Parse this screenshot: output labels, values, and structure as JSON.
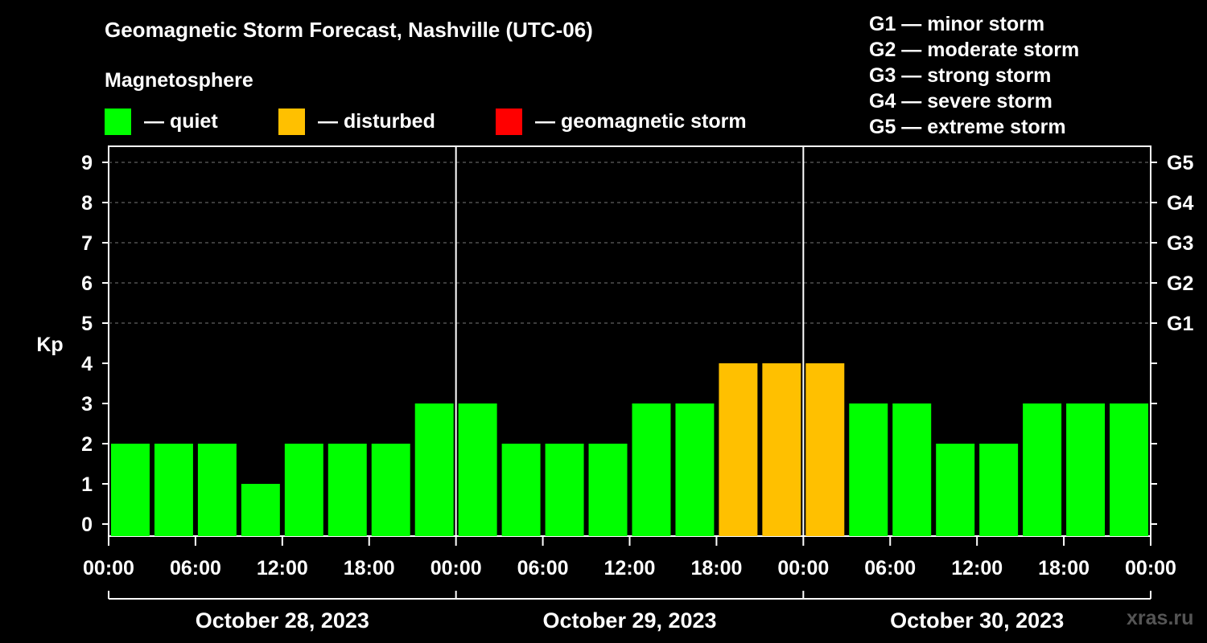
{
  "title": "Geomagnetic Storm Forecast, Nashville (UTC-06)",
  "legend": {
    "heading": "Magnetosphere",
    "items": [
      {
        "label": "— quiet",
        "color": "#00ff00"
      },
      {
        "label": "— disturbed",
        "color": "#ffc000"
      },
      {
        "label": "— geomagnetic storm",
        "color": "#ff0000"
      }
    ]
  },
  "storm_levels": [
    "G1 — minor storm",
    "G2 — moderate storm",
    "G3 — strong storm",
    "G4 — severe storm",
    "G5 — extreme storm"
  ],
  "watermark": "xras.ru",
  "colors": {
    "quiet": "#00ff00",
    "disturbed": "#ffc000",
    "storm": "#ff0000",
    "axis": "#ffffff",
    "grid": "#777777"
  },
  "chart_data": {
    "type": "bar",
    "title": "Geomagnetic Storm Forecast, Nashville (UTC-06)",
    "ylabel": "Kp",
    "ylim": [
      0,
      9
    ],
    "yticks": [
      0,
      1,
      2,
      3,
      4,
      5,
      6,
      7,
      8,
      9
    ],
    "grid_from": 5,
    "right_axis": [
      {
        "value": 5,
        "label": "G1"
      },
      {
        "value": 6,
        "label": "G2"
      },
      {
        "value": 7,
        "label": "G3"
      },
      {
        "value": 8,
        "label": "G4"
      },
      {
        "value": 9,
        "label": "G5"
      }
    ],
    "xticks": [
      "00:00",
      "06:00",
      "12:00",
      "18:00",
      "00:00",
      "06:00",
      "12:00",
      "18:00",
      "00:00",
      "06:00",
      "12:00",
      "18:00",
      "00:00"
    ],
    "days": [
      "October 28, 2023",
      "October 29, 2023",
      "October 30, 2023"
    ],
    "interval_hours": 3,
    "values": [
      2,
      2,
      2,
      1,
      2,
      2,
      2,
      3,
      3,
      2,
      2,
      2,
      3,
      3,
      4,
      4,
      4,
      3,
      3,
      2,
      2,
      3,
      3,
      3
    ],
    "thresholds": {
      "disturbed": 4,
      "storm": 5
    }
  }
}
